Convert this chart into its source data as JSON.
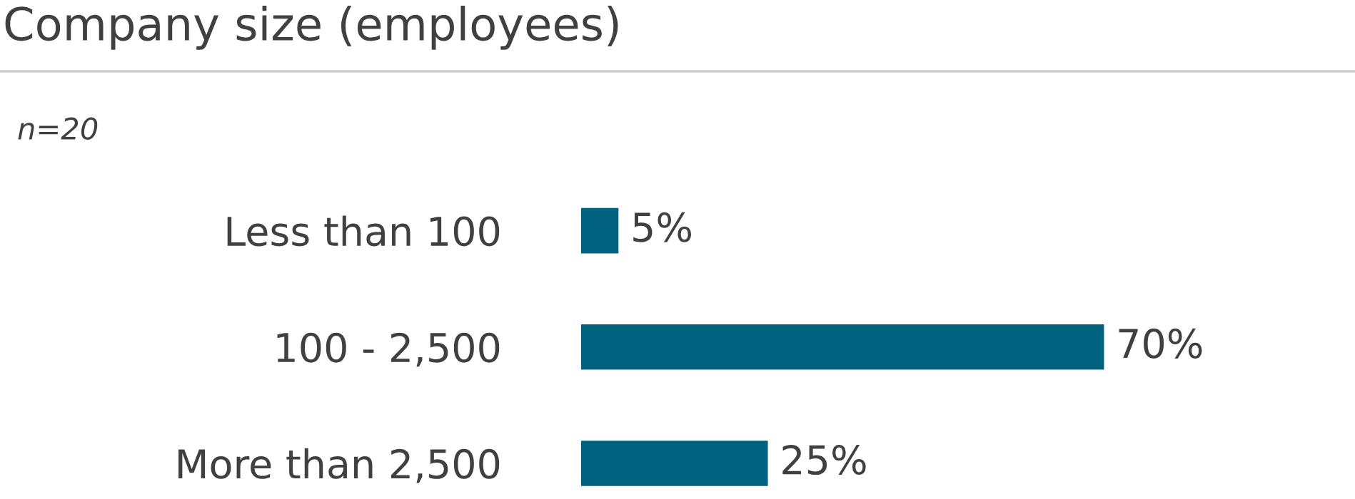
{
  "chart_data": {
    "type": "bar",
    "orientation": "horizontal",
    "title": "Company size (employees)",
    "subtitle": "n=20",
    "categories": [
      "Less than 100",
      "100 - 2,500",
      "More than 2,500"
    ],
    "values": [
      5,
      70,
      25
    ],
    "color": "#00627f",
    "value_labels": [
      "5%",
      "70%",
      "25%"
    ],
    "grid": false,
    "legend": false
  }
}
